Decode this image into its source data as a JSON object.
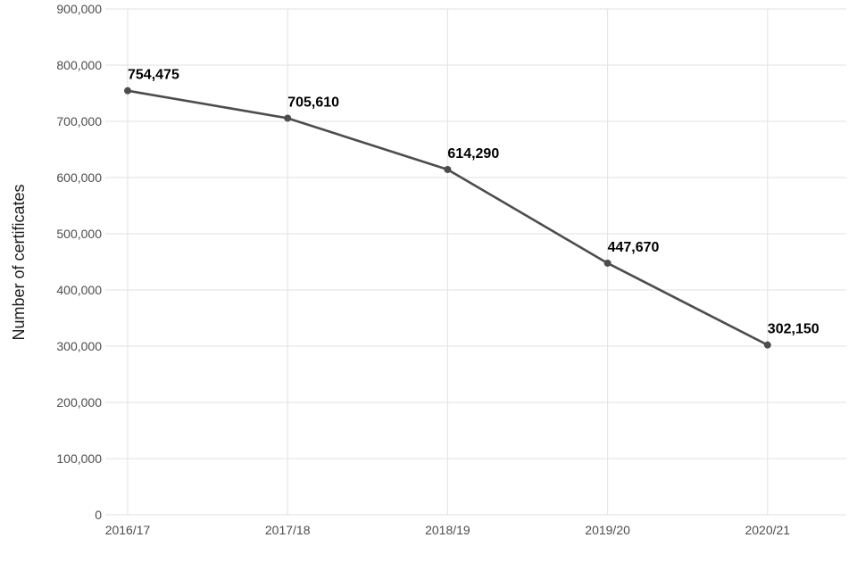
{
  "chart_data": {
    "type": "line",
    "title": "",
    "xlabel": "",
    "ylabel": "Number of certificates",
    "categories": [
      "2016/17",
      "2017/18",
      "2018/19",
      "2019/20",
      "2020/21"
    ],
    "series": [
      {
        "values": [
          754475,
          705610,
          614290,
          447670,
          302150
        ]
      }
    ],
    "data_labels": [
      "754,475",
      "705,610",
      "614,290",
      "447,670",
      "302,150"
    ],
    "ylim": [
      0,
      900000
    ],
    "yticks": [
      0,
      100000,
      200000,
      300000,
      400000,
      500000,
      600000,
      700000,
      800000,
      900000
    ],
    "ytick_labels": [
      "0",
      "100,000",
      "200,000",
      "300,000",
      "400,000",
      "500,000",
      "600,000",
      "700,000",
      "800,000",
      "900,000"
    ],
    "grid": true,
    "legend": "none",
    "line_color": "#4d4d4d"
  }
}
